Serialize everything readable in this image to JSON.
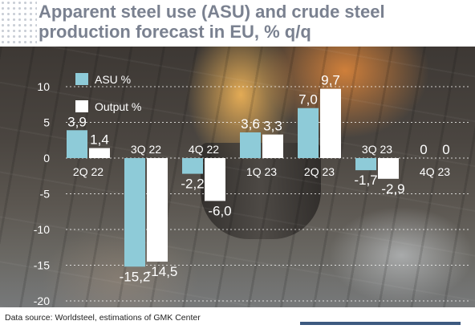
{
  "title": "Apparent steel use (ASU) and crude steel production forecast in EU, % q/q",
  "source": "Data source: Worldsteel, estimations of GMK Center",
  "colors": {
    "asu": "#8ecbd8",
    "output": "#ffffff",
    "title": "#7a8190",
    "accent_line": "#3d5a80"
  },
  "chart_data": {
    "type": "bar",
    "categories": [
      "2Q 22",
      "3Q 22",
      "4Q 22",
      "1Q 23",
      "2Q 23",
      "3Q 23",
      "4Q 23"
    ],
    "series": [
      {
        "name": "ASU %",
        "values": [
          3.9,
          -15.2,
          -2.2,
          3.6,
          7.0,
          -1.7,
          0
        ],
        "labels": [
          "3,9",
          "-15,2",
          "-2,2",
          "3,6",
          "7,0",
          "-1,7",
          "0"
        ]
      },
      {
        "name": "Output %",
        "values": [
          1.4,
          -14.5,
          -6.0,
          3.3,
          9.7,
          -2.9,
          0
        ],
        "labels": [
          "1,4",
          "-14,5",
          "-6,0",
          "3,3",
          "9,7",
          "-2,9",
          "0"
        ]
      }
    ],
    "yticks": [
      10,
      5,
      0,
      -5,
      -10,
      -15,
      -20
    ],
    "ytick_labels": [
      "10",
      "5",
      "0",
      "-5",
      "-10",
      "-15",
      "-20"
    ],
    "ylim": [
      -20,
      10
    ],
    "grid": true,
    "legend": "top-left"
  }
}
